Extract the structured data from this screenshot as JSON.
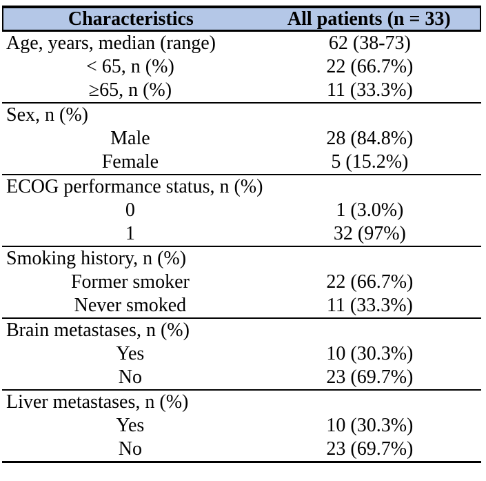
{
  "table": {
    "header": {
      "col1": "Characteristics",
      "col2": "All patients (n = 33)"
    },
    "styles": {
      "header_bg": "#b4c7e7",
      "border_color": "#000000",
      "text_color": "#000000"
    },
    "sections": [
      {
        "rows": [
          {
            "label": "Age, years, median (range)",
            "value": "62 (38-73)",
            "indent": false
          },
          {
            "label": "< 65, n (%)",
            "value": "22 (66.7%)",
            "indent": true
          },
          {
            "label": "≥65, n (%)",
            "value": "11 (33.3%)",
            "indent": true
          }
        ]
      },
      {
        "rows": [
          {
            "label": "Sex, n (%)",
            "value": "",
            "indent": false
          },
          {
            "label": "Male",
            "value": "28 (84.8%)",
            "indent": true
          },
          {
            "label": "Female",
            "value": "5 (15.2%)",
            "indent": true
          }
        ]
      },
      {
        "rows": [
          {
            "label": "ECOG performance status, n (%)",
            "value": "",
            "indent": false
          },
          {
            "label": "0",
            "value": "1 (3.0%)",
            "indent": true
          },
          {
            "label": "1",
            "value": "32 (97%)",
            "indent": true
          }
        ]
      },
      {
        "rows": [
          {
            "label": "Smoking history, n (%)",
            "value": "",
            "indent": false
          },
          {
            "label": "Former smoker",
            "value": "22 (66.7%)",
            "indent": true
          },
          {
            "label": "Never smoked",
            "value": "11 (33.3%)",
            "indent": true
          }
        ]
      },
      {
        "rows": [
          {
            "label": "Brain metastases, n (%)",
            "value": "",
            "indent": false
          },
          {
            "label": "Yes",
            "value": "10 (30.3%)",
            "indent": true
          },
          {
            "label": "No",
            "value": "23 (69.7%)",
            "indent": true
          }
        ]
      },
      {
        "rows": [
          {
            "label": "Liver metastases, n (%)",
            "value": "",
            "indent": false
          },
          {
            "label": "Yes",
            "value": "10 (30.3%)",
            "indent": true
          },
          {
            "label": "No",
            "value": "23 (69.7%)",
            "indent": true
          }
        ]
      }
    ]
  }
}
